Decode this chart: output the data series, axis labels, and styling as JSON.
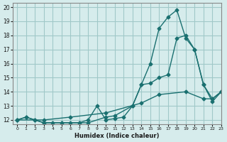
{
  "bg_color": "#d6ecec",
  "grid_color": "#a0c8c8",
  "line_color": "#1a7070",
  "xlabel": "Humidex (Indice chaleur)",
  "xlim": [
    0,
    23
  ],
  "ylim": [
    12,
    20
  ],
  "yticks": [
    12,
    13,
    14,
    15,
    16,
    17,
    18,
    19,
    20
  ],
  "xticks": [
    0,
    1,
    2,
    3,
    4,
    5,
    6,
    7,
    8,
    9,
    10,
    11,
    12,
    13,
    14,
    15,
    16,
    17,
    18,
    19,
    20,
    21,
    22,
    23
  ],
  "series": [
    {
      "x": [
        0,
        1,
        2,
        3,
        4,
        5,
        6,
        7,
        8,
        9,
        10,
        11,
        12,
        13,
        14,
        15,
        16,
        17,
        18,
        19,
        20,
        21,
        22,
        23
      ],
      "y": [
        12,
        12.2,
        12.0,
        11.8,
        11.8,
        11.8,
        11.8,
        11.8,
        12.0,
        13.0,
        12.0,
        12.1,
        12.2,
        13.0,
        14.5,
        16.0,
        18.5,
        19.3,
        19.8,
        17.8,
        17.0,
        14.5,
        13.5,
        14.0
      ]
    },
    {
      "x": [
        0,
        1,
        2,
        3,
        5,
        7,
        8,
        10,
        11,
        13,
        14,
        15,
        16,
        17,
        18,
        19,
        20,
        21,
        22,
        23
      ],
      "y": [
        12,
        12.2,
        12.0,
        11.8,
        11.8,
        11.8,
        11.8,
        12.2,
        12.3,
        13.0,
        14.5,
        14.6,
        15.0,
        15.2,
        17.8,
        18.0,
        17.0,
        14.5,
        13.3,
        14.0
      ]
    },
    {
      "x": [
        0,
        3,
        6,
        10,
        14,
        16,
        19,
        21,
        22,
        23
      ],
      "y": [
        12,
        12,
        12.2,
        12.5,
        13.2,
        13.8,
        14.0,
        13.5,
        13.5,
        14.0
      ]
    }
  ]
}
